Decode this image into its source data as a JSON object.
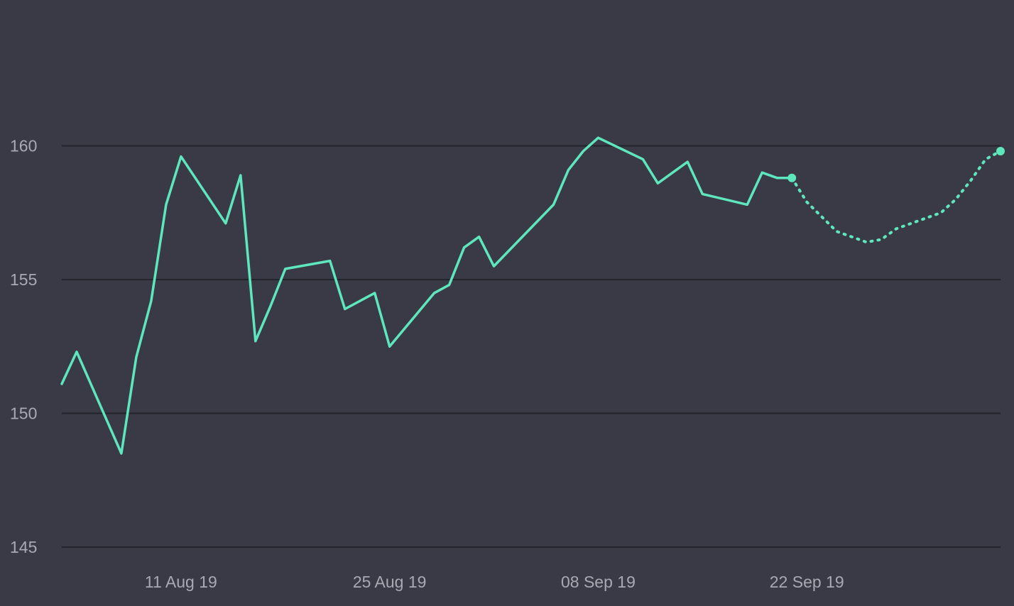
{
  "chart_data": {
    "type": "line",
    "colors": {
      "background": "#3a3a46",
      "line": "#5ee6bd",
      "grid": "#24242c",
      "tick_text": "#a9a9b4"
    },
    "ylim": [
      145,
      165
    ],
    "yticks": [
      {
        "value": 145,
        "label": "145"
      },
      {
        "value": 150,
        "label": "150"
      },
      {
        "value": 155,
        "label": "155"
      },
      {
        "value": 160,
        "label": "160"
      }
    ],
    "xlim": [
      "2019-08-03",
      "2019-10-05"
    ],
    "xticks": [
      {
        "value": "2019-08-11",
        "label": "11 Aug 19"
      },
      {
        "value": "2019-08-25",
        "label": "25 Aug 19"
      },
      {
        "value": "2019-09-08",
        "label": "08 Sep 19"
      },
      {
        "value": "2019-09-22",
        "label": "22 Sep 19"
      }
    ],
    "grid": true,
    "legend": "none",
    "series": [
      {
        "style": "solid",
        "marker_on_last": true,
        "points": [
          {
            "x": "2019-08-03",
            "y": 151.1
          },
          {
            "x": "2019-08-04",
            "y": 152.3
          },
          {
            "x": "2019-08-07",
            "y": 148.5
          },
          {
            "x": "2019-08-08",
            "y": 152.1
          },
          {
            "x": "2019-08-09",
            "y": 154.2
          },
          {
            "x": "2019-08-10",
            "y": 157.8
          },
          {
            "x": "2019-08-11",
            "y": 159.6
          },
          {
            "x": "2019-08-14",
            "y": 157.1
          },
          {
            "x": "2019-08-15",
            "y": 158.9
          },
          {
            "x": "2019-08-16",
            "y": 152.7
          },
          {
            "x": "2019-08-17",
            "y": 154.0
          },
          {
            "x": "2019-08-18",
            "y": 155.4
          },
          {
            "x": "2019-08-21",
            "y": 155.7
          },
          {
            "x": "2019-08-22",
            "y": 153.9
          },
          {
            "x": "2019-08-24",
            "y": 154.5
          },
          {
            "x": "2019-08-25",
            "y": 152.5
          },
          {
            "x": "2019-08-28",
            "y": 154.5
          },
          {
            "x": "2019-08-29",
            "y": 154.8
          },
          {
            "x": "2019-08-30",
            "y": 156.2
          },
          {
            "x": "2019-08-31",
            "y": 156.6
          },
          {
            "x": "2019-09-01",
            "y": 155.5
          },
          {
            "x": "2019-09-05",
            "y": 157.8
          },
          {
            "x": "2019-09-06",
            "y": 159.1
          },
          {
            "x": "2019-09-07",
            "y": 159.8
          },
          {
            "x": "2019-09-08",
            "y": 160.3
          },
          {
            "x": "2019-09-11",
            "y": 159.5
          },
          {
            "x": "2019-09-12",
            "y": 158.6
          },
          {
            "x": "2019-09-13",
            "y": 159.0
          },
          {
            "x": "2019-09-14",
            "y": 159.4
          },
          {
            "x": "2019-09-15",
            "y": 158.2
          },
          {
            "x": "2019-09-18",
            "y": 157.8
          },
          {
            "x": "2019-09-19",
            "y": 159.0
          },
          {
            "x": "2019-09-20",
            "y": 158.8
          },
          {
            "x": "2019-09-21",
            "y": 158.8
          }
        ]
      },
      {
        "style": "dotted",
        "marker_on_last": true,
        "points": [
          {
            "x": "2019-09-21",
            "y": 158.8
          },
          {
            "x": "2019-09-22",
            "y": 157.9
          },
          {
            "x": "2019-09-24",
            "y": 156.8
          },
          {
            "x": "2019-09-26",
            "y": 156.4
          },
          {
            "x": "2019-09-27",
            "y": 156.5
          },
          {
            "x": "2019-09-28",
            "y": 156.9
          },
          {
            "x": "2019-10-01",
            "y": 157.5
          },
          {
            "x": "2019-10-02",
            "y": 158.0
          },
          {
            "x": "2019-10-03",
            "y": 158.7
          },
          {
            "x": "2019-10-04",
            "y": 159.5
          },
          {
            "x": "2019-10-05",
            "y": 159.8
          }
        ]
      }
    ]
  }
}
